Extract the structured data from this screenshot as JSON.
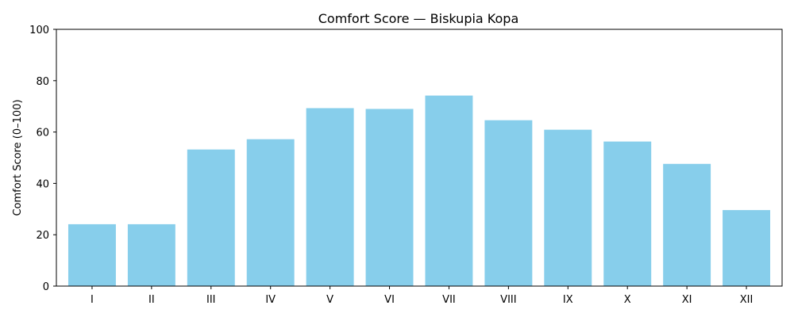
{
  "chart_data": {
    "type": "bar",
    "title": "Comfort Score — Biskupia Kopa",
    "xlabel": "",
    "ylabel": "Comfort Score (0–100)",
    "categories": [
      "I",
      "II",
      "III",
      "IV",
      "V",
      "VI",
      "VII",
      "VIII",
      "IX",
      "X",
      "XI",
      "XII"
    ],
    "values": [
      24.1,
      24.1,
      53.2,
      57.2,
      69.3,
      69.0,
      74.2,
      64.6,
      60.9,
      56.3,
      47.6,
      29.6
    ],
    "ylim": [
      0,
      100
    ],
    "yticks": [
      0,
      20,
      40,
      60,
      80,
      100
    ],
    "grid": false,
    "bar_color": "#87ceeb"
  }
}
